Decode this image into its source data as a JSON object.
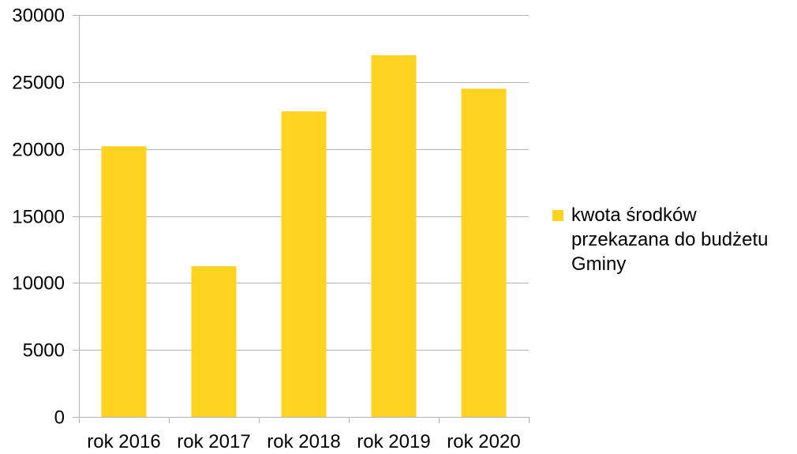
{
  "chart_data": {
    "type": "bar",
    "categories": [
      "rok 2016",
      "rok 2017",
      "rok 2018",
      "rok 2019",
      "rok 2020"
    ],
    "series": [
      {
        "name": "kwota środków przekazana do budżetu Gminy",
        "values": [
          20200,
          11250,
          22800,
          27000,
          24500
        ]
      }
    ],
    "ylim": [
      0,
      30000
    ],
    "yticks": [
      0,
      5000,
      10000,
      15000,
      20000,
      25000,
      30000
    ],
    "grid": true,
    "legend_position": "right",
    "colors": {
      "bar": "#FFD320",
      "grid": "#b3b3b3"
    }
  }
}
